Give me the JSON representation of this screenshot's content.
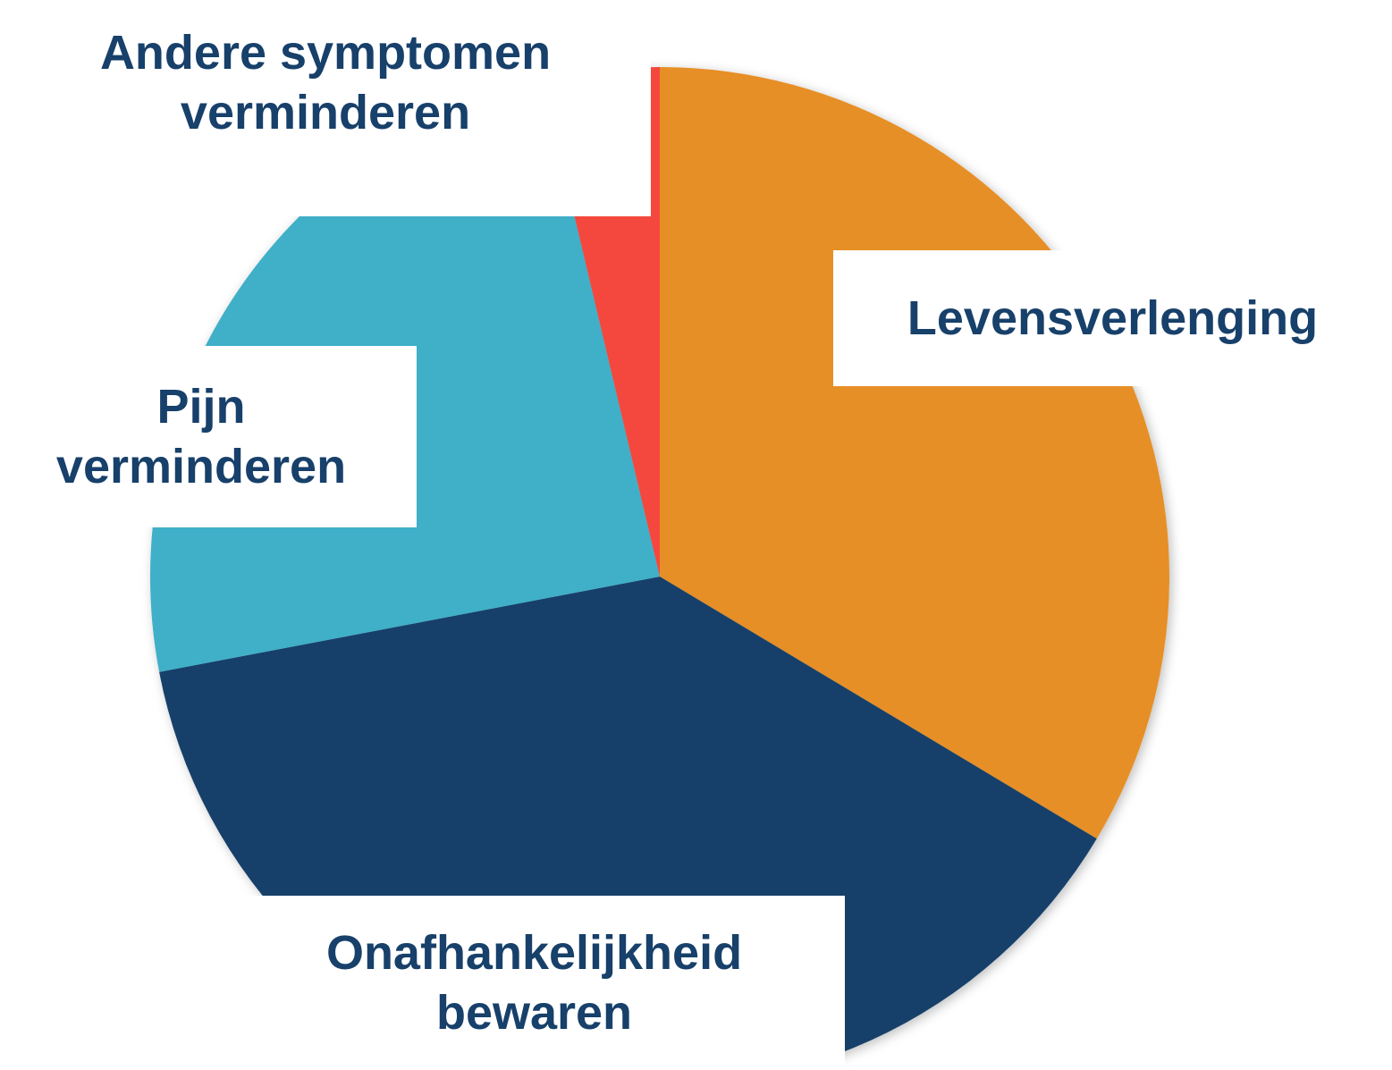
{
  "chart_data": {
    "type": "pie",
    "categories": [
      "Levensverlenging",
      "Onafhankelijkheid bewaren",
      "Pijn verminderen",
      "Andere symptomen verminderen"
    ],
    "values": [
      33.6,
      38.4,
      24.3,
      3.7
    ],
    "colors": [
      "#e68f28",
      "#15406b",
      "#41afc8",
      "#f4473d"
    ]
  }
}
